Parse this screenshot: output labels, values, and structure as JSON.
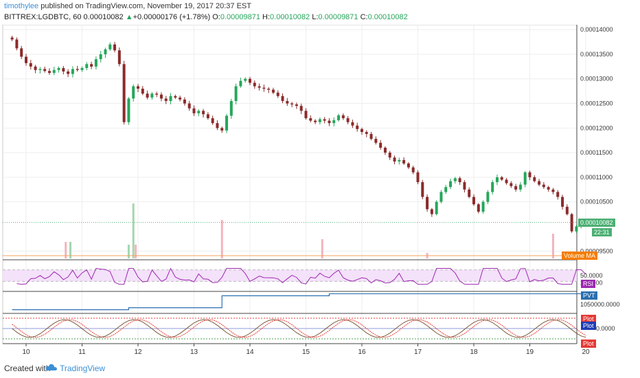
{
  "header": {
    "author": "timothylee",
    "published_text": "published on TradingView.com, November 19, 2017 20:37 EST",
    "symbol": "BITTREX:LGDBTC, 60",
    "last": "0.00010082",
    "arrow": "▲",
    "change": "+0.00000176 (+1.78%)",
    "o_label": "O:",
    "o_value": "0.00009871",
    "h_label": "H:",
    "h_value": "0.00010082",
    "l_label": "L:",
    "l_value": "0.00009871",
    "c_label": "C:",
    "c_value": "0.00010082"
  },
  "price_axis": {
    "ticks": [
      "0.00014000",
      "0.00013500",
      "0.00013000",
      "0.00012500",
      "0.00012000",
      "0.00011500",
      "0.00011000",
      "0.00010500",
      "0.00009500"
    ],
    "last_price_tag": "0.00010082",
    "countdown_tag": "22:31"
  },
  "volume": {
    "label": "Volume MA"
  },
  "rsi": {
    "label": "RSI",
    "ticks": [
      "50.0000",
      "25.0000"
    ]
  },
  "pvt": {
    "label": "PVT",
    "ticks": [
      "1050000.0000"
    ]
  },
  "plot_pane": {
    "labels": [
      "Plot",
      "Plot",
      "Plot"
    ],
    "ticks": [
      "0.0000"
    ]
  },
  "time_axis": {
    "ticks": [
      "10",
      "11",
      "12",
      "13",
      "14",
      "15",
      "16",
      "17",
      "18",
      "19",
      "20"
    ]
  },
  "footer": {
    "created": "Created with",
    "brand": "TradingView"
  },
  "colors": {
    "up": "#26a65b",
    "down": "#8b2b2b",
    "rsi": "#9c27b0",
    "pvt": "#2a6fb0",
    "last_tag": "#4caf74",
    "rsi_tag": "#9c27b0",
    "pvt_tag": "#2a6fb0",
    "plot_red": "#e53935",
    "plot_blue": "#1e3cb4",
    "volume_tag": "#f57c00"
  },
  "chart_data": {
    "type": "candlestick",
    "price_range": [
      9.35e-05,
      0.000141
    ],
    "hours_from_day10": [
      -6,
      -4,
      -2,
      0,
      2,
      4,
      6,
      8,
      10,
      12,
      14,
      16,
      18,
      20,
      22,
      24,
      26,
      28,
      30,
      32,
      34,
      36,
      38,
      40,
      42,
      44,
      46,
      48,
      50,
      52,
      54,
      56,
      58,
      60,
      62,
      64,
      66,
      68,
      70,
      72,
      74,
      76,
      78,
      80,
      82,
      84,
      86,
      88,
      90,
      92,
      94,
      96,
      98,
      100,
      102,
      104,
      106,
      108,
      110,
      112,
      114,
      116,
      118,
      120,
      122,
      124,
      126,
      128,
      130,
      132,
      134,
      136,
      138,
      140,
      142,
      144,
      146,
      148,
      150,
      152,
      154,
      156,
      158,
      160,
      162,
      164,
      166,
      168,
      170,
      172,
      174,
      176,
      178,
      180,
      182,
      184,
      186,
      188,
      190,
      192,
      194,
      196,
      198,
      200,
      202,
      204,
      206,
      208,
      210,
      212,
      214,
      216,
      218,
      220,
      222,
      224,
      226,
      228,
      230,
      232,
      234,
      236,
      238,
      240
    ],
    "close": [
      0.000138,
      0.0001362,
      0.0001345,
      0.0001332,
      0.0001325,
      0.0001318,
      0.000132,
      0.0001316,
      0.0001312,
      0.0001318,
      0.0001322,
      0.0001315,
      0.000131,
      0.000132,
      0.0001318,
      0.0001322,
      0.000133,
      0.0001325,
      0.000134,
      0.000135,
      0.000136,
      0.000137,
      0.0001358,
      0.000133,
      0.0001212,
      0.000126,
      0.0001285,
      0.000128,
      0.000127,
      0.0001262,
      0.000127,
      0.0001268,
      0.000126,
      0.0001255,
      0.0001265,
      0.0001262,
      0.0001258,
      0.000125,
      0.000124,
      0.000123,
      0.0001235,
      0.0001228,
      0.000122,
      0.000121,
      0.00012,
      0.0001195,
      0.0001225,
      0.0001255,
      0.0001285,
      0.0001296,
      0.00013,
      0.0001292,
      0.0001285,
      0.0001282,
      0.000128,
      0.0001278,
      0.0001272,
      0.0001265,
      0.0001255,
      0.000125,
      0.0001248,
      0.0001245,
      0.0001235,
      0.000122,
      0.0001215,
      0.0001212,
      0.0001218,
      0.0001215,
      0.000121,
      0.0001216,
      0.0001226,
      0.000122,
      0.0001212,
      0.0001205,
      0.0001198,
      0.0001192,
      0.0001188,
      0.0001178,
      0.000117,
      0.000116,
      0.000115,
      0.000114,
      0.0001132,
      0.0001135,
      0.0001128,
      0.000112,
      0.000111,
      0.000109,
      0.000106,
      0.0001035,
      0.0001025,
      0.000105,
      0.000107,
      0.000108,
      0.0001092,
      0.0001098,
      0.000109,
      0.0001075,
      0.000106,
      0.0001045,
      0.000103,
      0.000105,
      0.000107,
      0.000109,
      0.00011,
      0.0001095,
      0.0001088,
      0.0001082,
      0.0001075,
      0.0001085,
      0.000111,
      0.00011,
      0.0001092,
      0.0001085,
      0.000108,
      0.0001075,
      0.000107,
      0.000106,
      0.000104,
      0.0001025,
      9.9e-05,
      0.0001,
      0.0001008,
      0.0001008
    ],
    "volume_spikes": [
      {
        "hour": 17,
        "relative": 0.3
      },
      {
        "hour": 19,
        "relative": 0.3
      },
      {
        "hour": 44,
        "relative": 0.25
      },
      {
        "hour": 46,
        "relative": 1.0
      },
      {
        "hour": 47,
        "relative": 0.25
      },
      {
        "hour": 84,
        "relative": 0.7
      },
      {
        "hour": 127,
        "relative": 0.35
      },
      {
        "hour": 172,
        "relative": 0.1
      },
      {
        "hour": 226,
        "relative": 0.45
      }
    ],
    "rsi_range": [
      0,
      100
    ],
    "rsi_bands": [
      30,
      70
    ],
    "pvt_steps": [
      {
        "hour": -6,
        "relative": 0.15
      },
      {
        "hour": 44,
        "relative": 0.25
      },
      {
        "hour": 84,
        "relative": 0.85
      },
      {
        "hour": 130,
        "relative": 0.95
      }
    ]
  }
}
